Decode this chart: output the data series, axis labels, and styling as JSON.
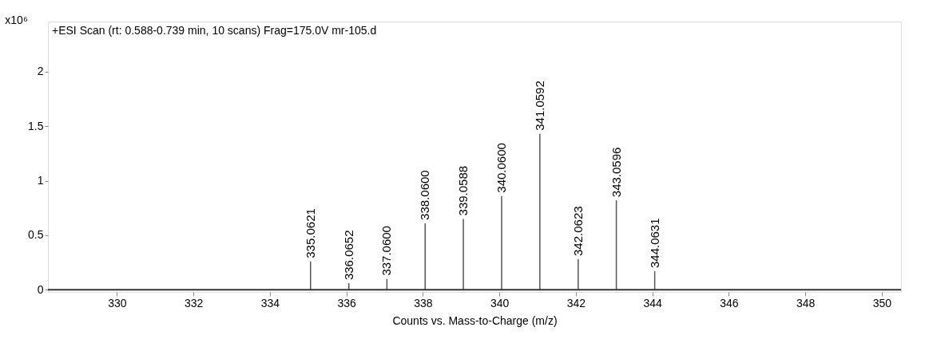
{
  "chart_data": {
    "type": "bar",
    "title": "+ESI Scan (rt: 0.588-0.739 min, 10 scans) Frag=175.0V mr-105.d",
    "xlabel": "Counts vs. Mass-to-Charge (m/z)",
    "ylabel": "x10⁶",
    "x": [
      335.0621,
      336.0652,
      337.06,
      338.06,
      339.0588,
      340.06,
      341.0592,
      342.0623,
      343.0596,
      344.0631
    ],
    "series": [
      {
        "color": "#555555",
        "values": [
          0.26,
          0.06,
          0.1,
          0.61,
          0.65,
          0.86,
          1.43,
          0.28,
          0.82,
          0.17
        ]
      }
    ],
    "annotations": [
      {
        "text": "335.0621",
        "x": 335.0621,
        "y": 0.26
      },
      {
        "text": "336.0652",
        "x": 336.0652,
        "y": 0.06
      },
      {
        "text": "337.0600",
        "x": 337.06,
        "y": 0.1
      },
      {
        "text": "338.0600",
        "x": 338.06,
        "y": 0.61
      },
      {
        "text": "339.0588",
        "x": 339.0588,
        "y": 0.65
      },
      {
        "text": "340.0600",
        "x": 340.06,
        "y": 0.86
      },
      {
        "text": "341.0592",
        "x": 341.0592,
        "y": 1.43
      },
      {
        "text": "342.0623",
        "x": 342.0623,
        "y": 0.28
      },
      {
        "text": "343.0596",
        "x": 343.0596,
        "y": 0.82
      },
      {
        "text": "344.0631",
        "x": 344.0631,
        "y": 0.17
      }
    ],
    "xlim": [
      328.3,
      350.4
    ],
    "xticks": [
      330,
      332,
      334,
      336,
      338,
      340,
      342,
      344,
      346,
      348,
      350
    ],
    "ylim": [
      -0.02,
      2.46
    ],
    "yticks": [
      0,
      0.5,
      1,
      1.5,
      2
    ],
    "ref_lines": [
      {
        "axis": "y",
        "value": 0,
        "color": "#333333"
      }
    ],
    "grid": false
  }
}
